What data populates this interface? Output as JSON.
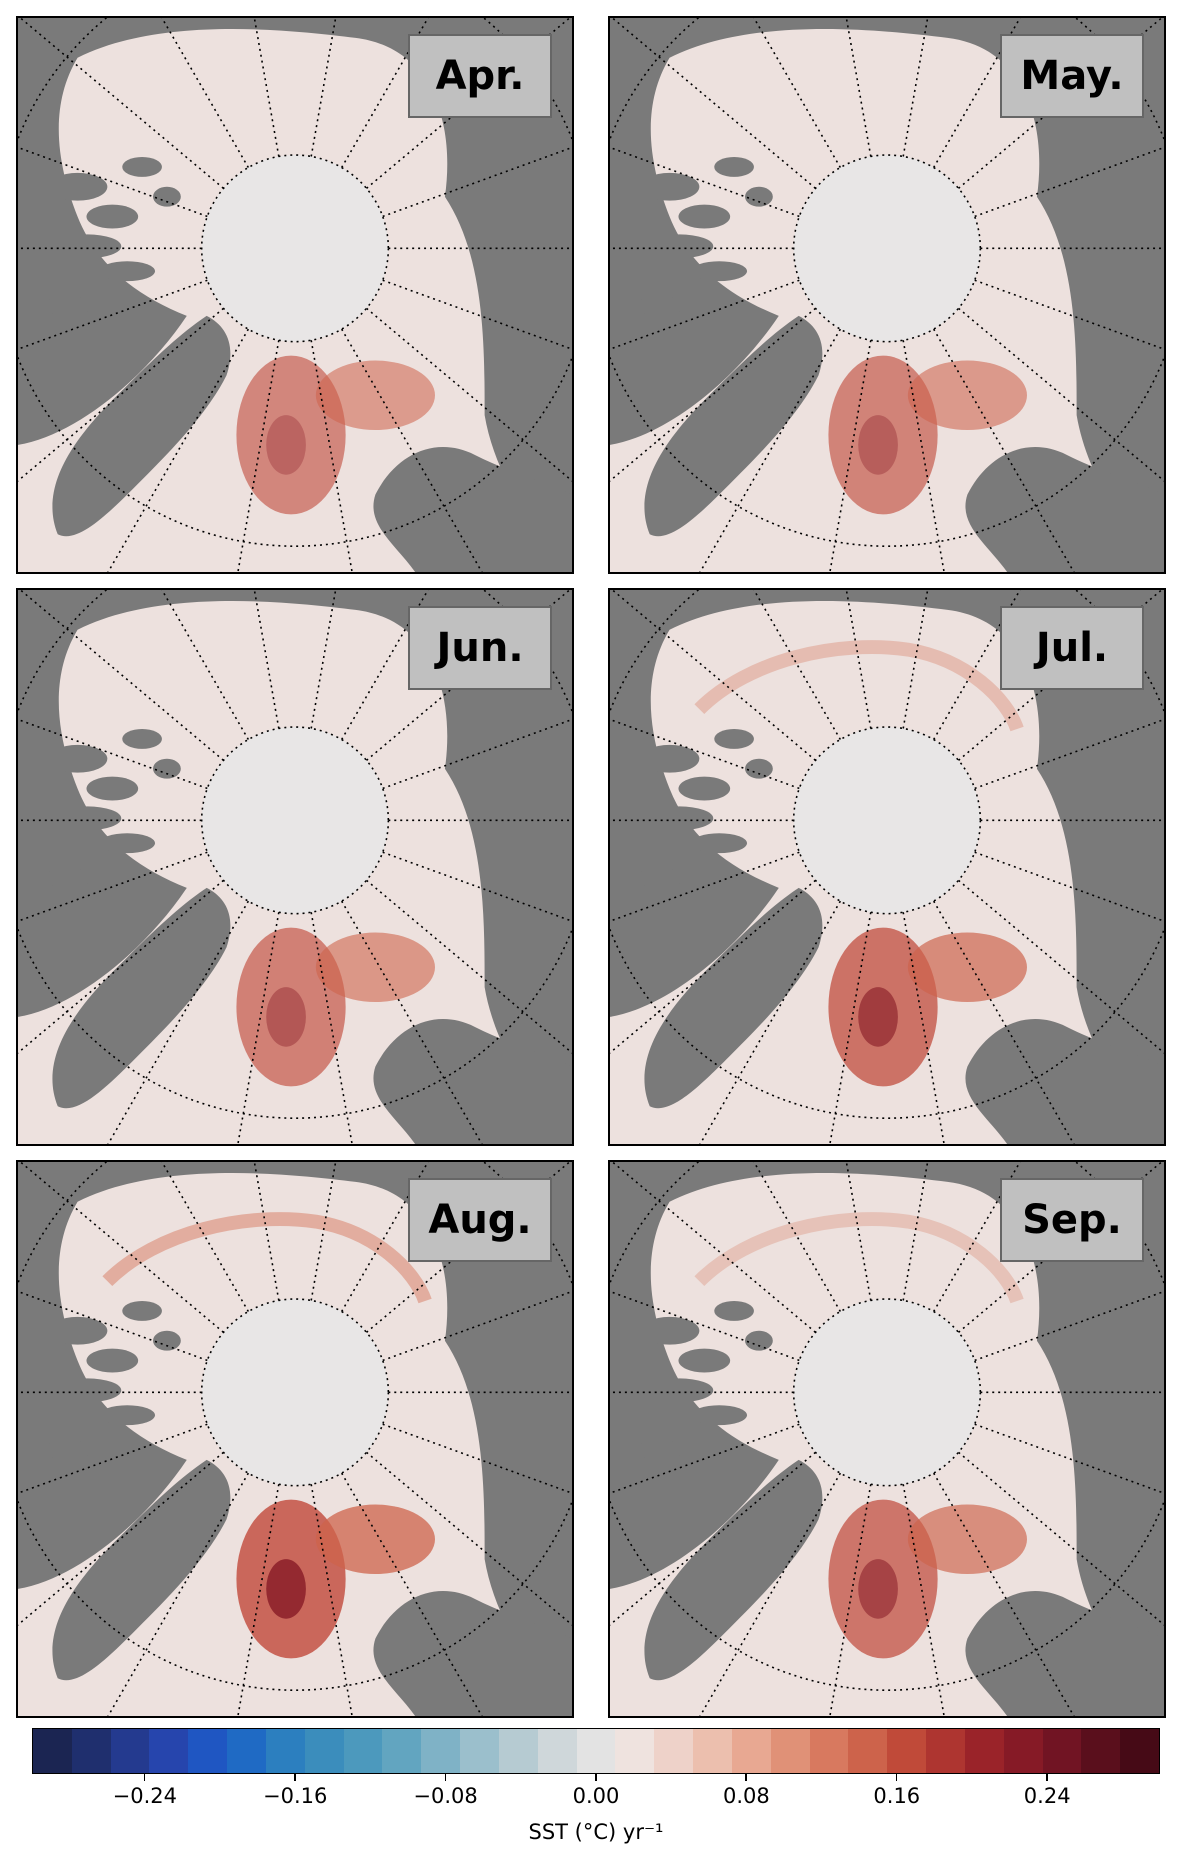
{
  "panels": [
    {
      "month": "Apr.",
      "intensity": 0.55
    },
    {
      "month": "May.",
      "intensity": 0.6
    },
    {
      "month": "Jun.",
      "intensity": 0.65
    },
    {
      "month": "Jul.",
      "intensity": 0.85
    },
    {
      "month": "Aug.",
      "intensity": 1.0
    },
    {
      "month": "Sep.",
      "intensity": 0.8
    }
  ],
  "colorbar": {
    "min": -0.3,
    "max": 0.3,
    "ticks": [
      "−0.24",
      "−0.16",
      "−0.08",
      "0.00",
      "0.08",
      "0.16",
      "0.24"
    ],
    "tick_values": [
      -0.24,
      -0.16,
      -0.08,
      0.0,
      0.08,
      0.16,
      0.24
    ],
    "label": "SST (°C) yr⁻¹",
    "colors": [
      "#1b2552",
      "#1f2f6e",
      "#243a8f",
      "#2645ad",
      "#1f56c2",
      "#1f6ac4",
      "#2c7fbf",
      "#3b8dbc",
      "#4c99bd",
      "#62a5c0",
      "#7fb2c6",
      "#9bbfcc",
      "#b6cbd2",
      "#cfd7da",
      "#e3e3e3",
      "#efe3df",
      "#eed2c9",
      "#ecbfae",
      "#e8a892",
      "#e09177",
      "#d8795f",
      "#cd634b",
      "#c04a39",
      "#ae3530",
      "#9a2329",
      "#861a26",
      "#711423",
      "#5a0f1c",
      "#460a16"
    ]
  },
  "colors": {
    "land": "#7a7a7a",
    "ocean": "#ede1de",
    "ice": "#e8e6e6",
    "box": "#c0c0c0"
  }
}
